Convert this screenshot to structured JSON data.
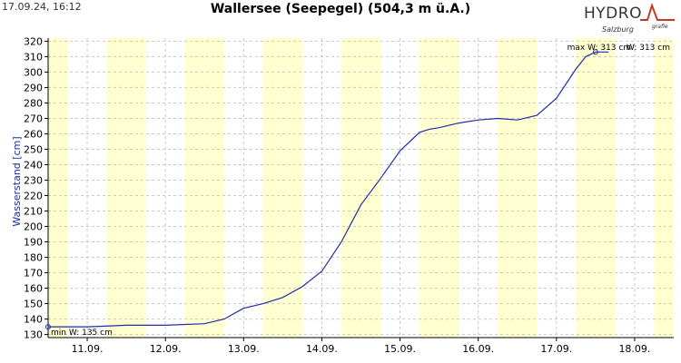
{
  "header": {
    "timestamp": "17.09.24, 16:12",
    "logo_text": "HYDRO",
    "logo_sub": "Salzburg",
    "logo_small": "grafie"
  },
  "colors": {
    "line": "#1f2ca5",
    "band": "#ffffd0",
    "grid": "#c8c8c8",
    "axis": "#000000"
  },
  "chart_data": {
    "type": "line",
    "title": "Wallersee (Seepegel) (504,3 m ü.A.)",
    "ylabel": "Wasserstand [cm]",
    "xlabel": "",
    "ylim": [
      128,
      322
    ],
    "xlim": [
      "10.09. 12:00",
      "18.09. 12:00"
    ],
    "yticks": [
      130,
      140,
      150,
      160,
      170,
      180,
      190,
      200,
      210,
      220,
      230,
      240,
      250,
      260,
      270,
      280,
      290,
      300,
      310,
      320
    ],
    "xticks": [
      "11.09.",
      "12.09.",
      "13.09.",
      "14.09.",
      "15.09.",
      "16.09.",
      "17.09.",
      "18.09."
    ],
    "grid": true,
    "series": [
      {
        "x": [
          "10.09. 12:00",
          "10.09. 18:00",
          "11.09. 00:00",
          "11.09. 12:00",
          "12.09. 00:00",
          "12.09. 12:00",
          "12.09. 18:00",
          "13.09. 00:00",
          "13.09. 06:00",
          "13.09. 12:00",
          "13.09. 18:00",
          "14.09. 00:00",
          "14.09. 06:00",
          "14.09. 12:00",
          "14.09. 18:00",
          "15.09. 00:00",
          "15.09. 06:00",
          "15.09. 09:00",
          "15.09. 12:00",
          "15.09. 18:00",
          "16.09. 00:00",
          "16.09. 06:00",
          "16.09. 12:00",
          "16.09. 18:00",
          "17.09. 00:00",
          "17.09. 06:00",
          "17.09. 09:00",
          "17.09. 12:00",
          "17.09. 16:00"
        ],
        "values": [
          135,
          135,
          135,
          136,
          136,
          137,
          140,
          147,
          150,
          154,
          161,
          171,
          190,
          214,
          231,
          249,
          261,
          263,
          264,
          267,
          269,
          270,
          269,
          272,
          283,
          302,
          310,
          313,
          313
        ]
      }
    ],
    "annotations": {
      "min_label": "min W: 135 cm",
      "max_label": "max W: 313 cm",
      "current_label": "W: 313 cm"
    }
  }
}
